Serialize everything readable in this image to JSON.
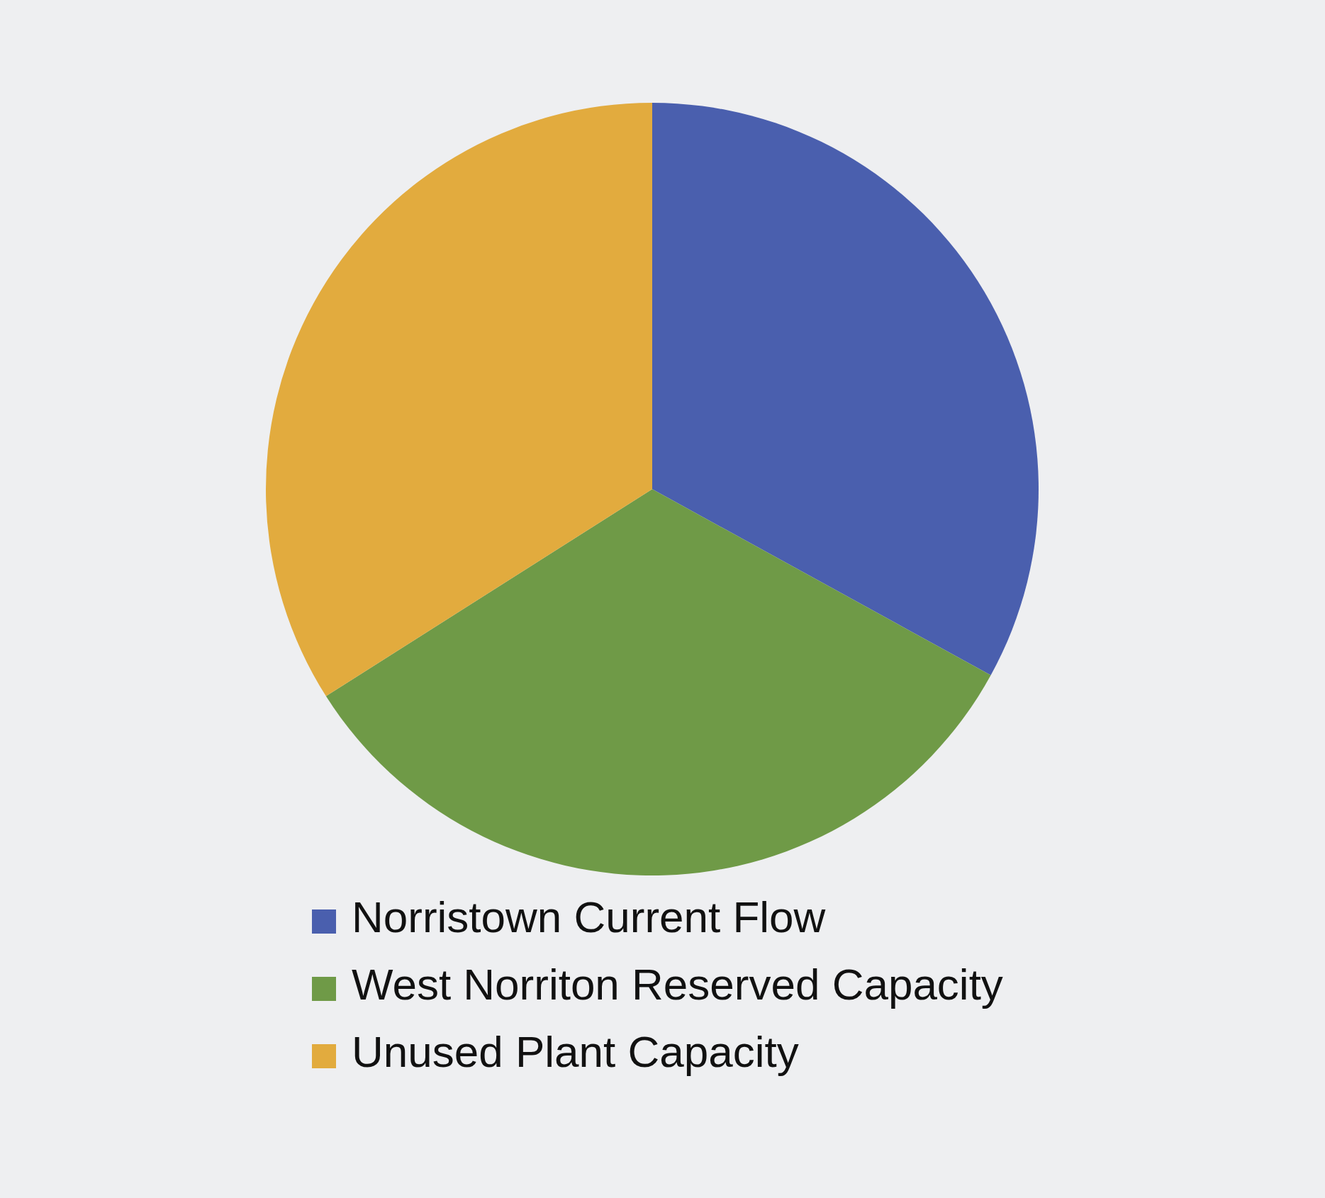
{
  "chart_data": {
    "type": "pie",
    "categories": [
      "Norristown Current Flow",
      "West Norriton Reserved Capacity",
      "Unused Plant Capacity"
    ],
    "values": [
      33,
      33,
      34
    ],
    "colors": [
      "#4a5fae",
      "#6f9a47",
      "#e2ab3e"
    ],
    "legend": "bottom"
  }
}
